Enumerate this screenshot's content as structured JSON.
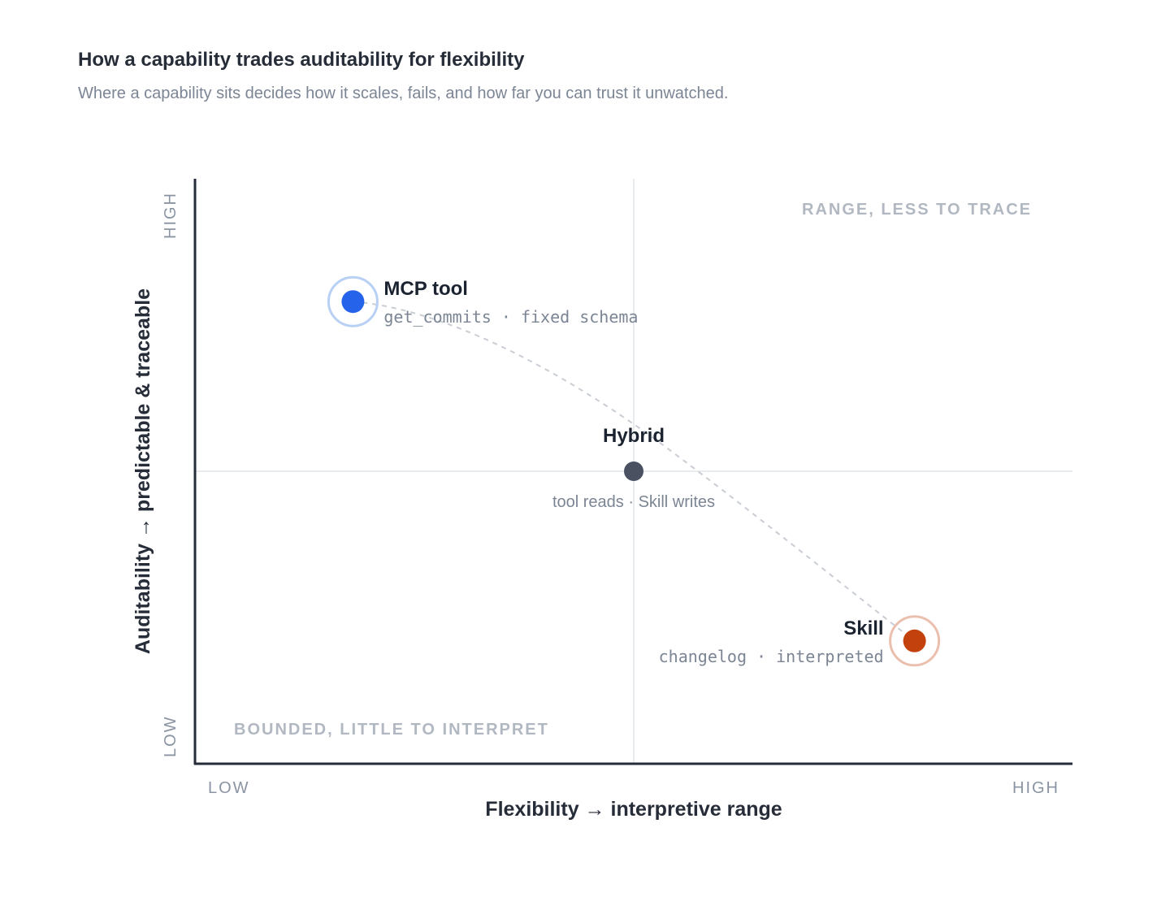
{
  "header": {
    "title": "How a capability trades auditability for flexibility",
    "subtitle": "Where a capability sits decides how it scales, fails, and how far you can trust it unwatched."
  },
  "chart_data": {
    "type": "scatter",
    "xlabel": "Flexibility → interpretive range",
    "ylabel": "Auditability → predictable & traceable",
    "xlim": [
      0,
      1
    ],
    "ylim": [
      0,
      1
    ],
    "x_ticks": {
      "low": "LOW",
      "high": "HIGH"
    },
    "y_ticks": {
      "low": "LOW",
      "high": "HIGH"
    },
    "quadrant_labels": {
      "top_right": "RANGE, LESS TO TRACE",
      "bottom_left": "BOUNDED, LITTLE TO INTERPRET"
    },
    "points": [
      {
        "name": "MCP tool",
        "desc": "get_commits · fixed schema",
        "x": 0.18,
        "y": 0.79,
        "color": "#2563eb",
        "halo": "#b9d0f5",
        "mono": true
      },
      {
        "name": "Hybrid",
        "desc": "tool reads · Skill writes",
        "x": 0.5,
        "y": 0.5,
        "color": "#4a5261",
        "halo": "",
        "mono": false
      },
      {
        "name": "Skill",
        "desc": "changelog · interpreted",
        "x": 0.82,
        "y": 0.21,
        "color": "#c2410c",
        "halo": "#ebbfae",
        "mono": true
      }
    ],
    "trend_line": "dashed curve from MCP tool through Hybrid to Skill",
    "grid": "center crosshair only",
    "colors": {
      "axis": "#262d38",
      "grid": "#e2e5ea",
      "trend": "#c9cdd4"
    }
  }
}
